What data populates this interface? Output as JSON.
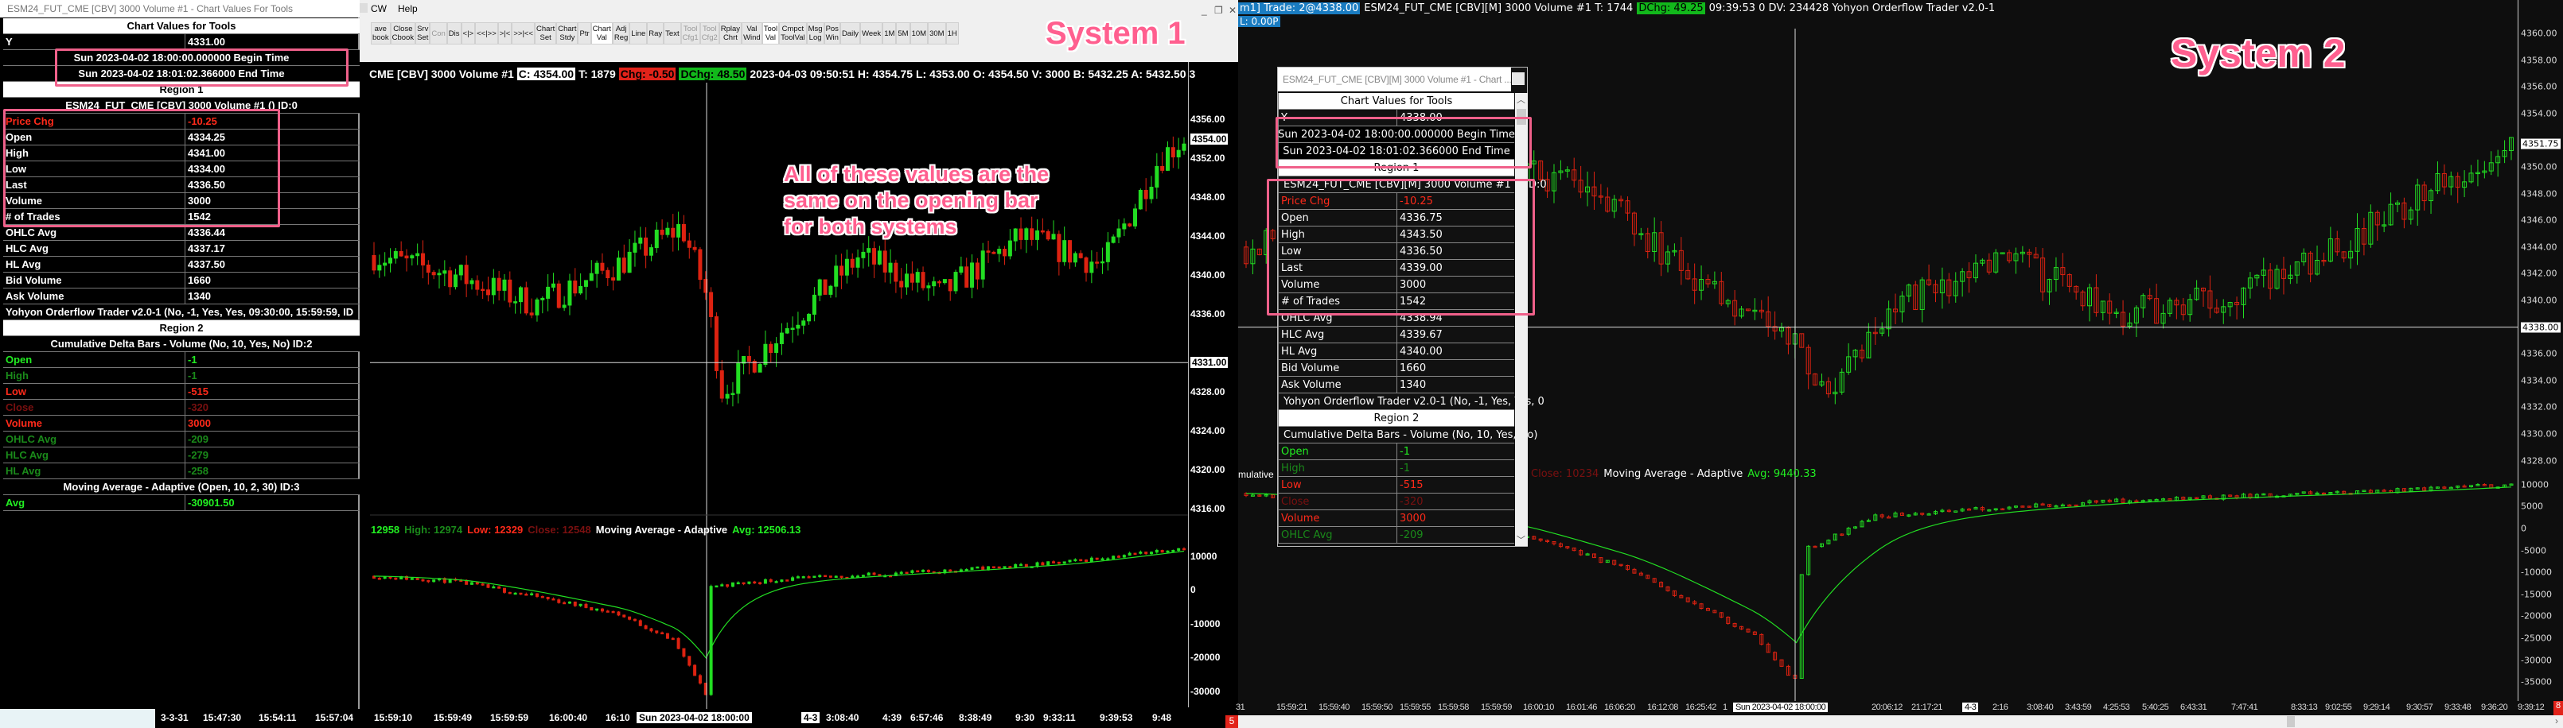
{
  "colors": {
    "up": "#22dd22",
    "down": "#dd2211",
    "price_chg": "#ff2a1a",
    "bright_green": "#22ee22",
    "dark_green": "#1a8a1a",
    "dark_red": "#7a1010",
    "annotation": "#ff5f8f",
    "trade_blue": "#1a7cc1"
  },
  "annotation_note": "All of these values are the\nsame on the opening bar\nfor both systems",
  "system1": {
    "label": "System 1",
    "panel": {
      "title": "ESM24_FUT_CME [CBV]  3000 Volume #1 - Chart Values For Tools",
      "rows": [
        {
          "type": "title",
          "text": "Chart Values for Tools"
        },
        {
          "type": "kv",
          "label": "Y",
          "value": "4331.00"
        },
        {
          "type": "full",
          "text": "Sun 2023-04-02  18:00:00.000000 Begin Time"
        },
        {
          "type": "full",
          "text": "Sun 2023-04-02  18:01:02.366000 End Time"
        },
        {
          "type": "title",
          "text": "Region 1"
        },
        {
          "type": "full",
          "text": "ESM24_FUT_CME [CBV]  3000 Volume #1 ()   ID:0"
        },
        {
          "type": "kv",
          "label": "Price Chg",
          "value": "-10.25",
          "color": "price_chg"
        },
        {
          "type": "kv",
          "label": "Open",
          "value": "4334.25"
        },
        {
          "type": "kv",
          "label": "High",
          "value": "4341.00"
        },
        {
          "type": "kv",
          "label": "Low",
          "value": "4334.00"
        },
        {
          "type": "kv",
          "label": "Last",
          "value": "4336.50"
        },
        {
          "type": "kv",
          "label": "Volume",
          "value": "3000"
        },
        {
          "type": "kv",
          "label": "# of Trades",
          "value": "1542"
        },
        {
          "type": "kv",
          "label": "OHLC Avg",
          "value": "4336.44"
        },
        {
          "type": "kv",
          "label": "HLC Avg",
          "value": "4337.17"
        },
        {
          "type": "kv",
          "label": "HL Avg",
          "value": "4337.50"
        },
        {
          "type": "kv",
          "label": "Bid Volume",
          "value": "1660"
        },
        {
          "type": "kv",
          "label": "Ask Volume",
          "value": "1340"
        },
        {
          "type": "fullleft",
          "text": "Yohyon Orderflow Trader v2.0-1 (No, -1, Yes, Yes, 09:30:00, 15:59:59, ID"
        },
        {
          "type": "title",
          "text": "Region 2"
        },
        {
          "type": "full",
          "text": "Cumulative Delta Bars - Volume (No, 10, Yes, No)   ID:2"
        },
        {
          "type": "kv",
          "label": "Open",
          "value": "-1",
          "color": "bright_green"
        },
        {
          "type": "kv",
          "label": "High",
          "value": "-1",
          "color": "dark_green"
        },
        {
          "type": "kv",
          "label": "Low",
          "value": "-515",
          "color": "price_chg"
        },
        {
          "type": "kv",
          "label": "Close",
          "value": "-320",
          "color": "dark_red"
        },
        {
          "type": "kv",
          "label": "Volume",
          "value": "3000",
          "color": "price_chg"
        },
        {
          "type": "kv",
          "label": "OHLC Avg",
          "value": "-209",
          "color": "dark_green"
        },
        {
          "type": "kv",
          "label": "HLC Avg",
          "value": "-279",
          "color": "dark_green"
        },
        {
          "type": "kv",
          "label": "HL Avg",
          "value": "-258",
          "color": "dark_green"
        },
        {
          "type": "full",
          "text": "Moving Average - Adaptive (Open, 10, 2, 30)   ID:3"
        },
        {
          "type": "kv",
          "label": "Avg",
          "value": "-30901.50",
          "color": "bright_green"
        }
      ]
    },
    "menu": [
      "CW",
      "Help"
    ],
    "toolbar": [
      {
        "label": "ave\nbook"
      },
      {
        "label": "Close\nCbook"
      },
      {
        "label": "Srv\nSet"
      },
      {
        "label": "Con",
        "disabled": true
      },
      {
        "label": "Dis"
      },
      {
        "label": "<|>"
      },
      {
        "label": "<<|>>"
      },
      {
        "label": ">|<"
      },
      {
        "label": ">>|<<"
      },
      {
        "label": "Chart\nSet"
      },
      {
        "label": "Chart\nStdy"
      },
      {
        "label": "Ptr"
      },
      {
        "label": "Chart\nVal",
        "active": true
      },
      {
        "label": "Adj\nReg"
      },
      {
        "label": "Line"
      },
      {
        "label": "Ray"
      },
      {
        "label": "Text"
      },
      {
        "label": "Tool\nCfg1",
        "disabled": true
      },
      {
        "label": "Tool\nCfg2",
        "disabled": true
      },
      {
        "label": "Rplay\nChrt"
      },
      {
        "label": "Val\nWind"
      },
      {
        "label": "Tool\nVal",
        "active": true
      },
      {
        "label": "Cmpct\nToolVal"
      },
      {
        "label": "Msg\nLog"
      },
      {
        "label": "Pos\nWin"
      },
      {
        "label": "Daily"
      },
      {
        "label": "Week"
      },
      {
        "label": "1M"
      },
      {
        "label": "5M"
      },
      {
        "label": "10M"
      },
      {
        "label": "30M"
      },
      {
        "label": "1H"
      }
    ],
    "header": {
      "symbol": "CME [CBV]  3000 Volume #1",
      "close": "C: 4354.00",
      "trades": "T: 1879",
      "chg": "Chg: -0.50",
      "dchg": "DChg: 48.50",
      "rest": "2023-04-03 09:50:51 H: 4354.75 L: 4353.00 O: 4354.50 V: 3000 B: 5432.25 A: 5432.50 3"
    },
    "price_axis": [
      "4356.00",
      "4352.00",
      "4348.00",
      "4344.00",
      "4340.00",
      "4336.00",
      "4328.00",
      "4324.00",
      "4320.00",
      "4316.00"
    ],
    "price_markers": {
      "last": "4354.00",
      "cursor": "4331.00"
    },
    "delta_axis": [
      "10000",
      "0",
      "-10000",
      "-20000",
      "-30000"
    ],
    "legend": [
      {
        "text": "12958",
        "color": "bright_green"
      },
      {
        "text": "High: 12974",
        "color": "dark_green"
      },
      {
        "text": "Low: 12329",
        "color": "price_chg"
      },
      {
        "text": "Close: 12548",
        "color": "dark_red"
      },
      {
        "text": "Moving Average - Adaptive",
        "color": "white"
      },
      {
        "text": "Avg: 12506.13",
        "color": "bright_green"
      }
    ],
    "time_axis": [
      "3-3-31",
      "15:47:30",
      "15:54:11",
      "15:57:04",
      "15:59:10",
      "15:59:49",
      "15:59:59",
      "16:00:40",
      "16:10",
      "Sun 2023-04-02  18:00:00",
      "4-3",
      "3:08:40",
      "4:39",
      "6:57:46",
      "8:38:49",
      "9:30",
      "9:33:11",
      "9:39:53",
      "9:48"
    ],
    "corner_badge": "5"
  },
  "system2": {
    "label": "System 2",
    "header": {
      "trade": "m1]  Trade: 2@4338.00",
      "symbol": "ESM24_FUT_CME [CBV][M]  3000 Volume #1 T: 1744",
      "dchg": "DChg: 49.25",
      "rest": "09:39:53 0 DV: 234428 Yohyon Orderflow Trader v2.0-1",
      "pl": "L: 0.00P"
    },
    "window": {
      "title": "ESM24_FUT_CME [CBV][M]  3000 Volume #1 - Chart ...",
      "rows": [
        {
          "type": "title",
          "text": "Chart Values for Tools"
        },
        {
          "type": "kv",
          "label": "Y",
          "value": "4338.00"
        },
        {
          "type": "full",
          "text": "Sun 2023-04-02  18:00:00.000000 Begin Time"
        },
        {
          "type": "full",
          "text": "Sun 2023-04-02  18:01:02.366000 End Time"
        },
        {
          "type": "title",
          "text": "Region 1"
        },
        {
          "type": "fullleft",
          "text": "ESM24_FUT_CME [CBV][M]  3000 Volume #1 ()   ID:0"
        },
        {
          "type": "kv",
          "label": "Price Chg",
          "value": "-10.25",
          "color": "price_chg"
        },
        {
          "type": "kv",
          "label": "Open",
          "value": "4336.75"
        },
        {
          "type": "kv",
          "label": "High",
          "value": "4343.50"
        },
        {
          "type": "kv",
          "label": "Low",
          "value": "4336.50"
        },
        {
          "type": "kv",
          "label": "Last",
          "value": "4339.00"
        },
        {
          "type": "kv",
          "label": "Volume",
          "value": "3000"
        },
        {
          "type": "kv",
          "label": "# of Trades",
          "value": "1542"
        },
        {
          "type": "kv",
          "label": "OHLC Avg",
          "value": "4338.94"
        },
        {
          "type": "kv",
          "label": "HLC Avg",
          "value": "4339.67"
        },
        {
          "type": "kv",
          "label": "HL Avg",
          "value": "4340.00"
        },
        {
          "type": "kv",
          "label": "Bid Volume",
          "value": "1660"
        },
        {
          "type": "kv",
          "label": "Ask Volume",
          "value": "1340"
        },
        {
          "type": "fullleft",
          "text": "Yohyon Orderflow Trader v2.0-1 (No, -1, Yes, Yes, 0"
        },
        {
          "type": "title",
          "text": "Region 2"
        },
        {
          "type": "fullleft",
          "text": "Cumulative Delta Bars - Volume (No, 10, Yes, No)"
        },
        {
          "type": "kv",
          "label": "Open",
          "value": "-1",
          "color": "bright_green"
        },
        {
          "type": "kv",
          "label": "High",
          "value": "-1",
          "color": "dark_green"
        },
        {
          "type": "kv",
          "label": "Low",
          "value": "-515",
          "color": "price_chg"
        },
        {
          "type": "kv",
          "label": "Close",
          "value": "-320",
          "color": "dark_red"
        },
        {
          "type": "kv",
          "label": "Volume",
          "value": "3000",
          "color": "price_chg"
        },
        {
          "type": "kv",
          "label": "OHLC Avg",
          "value": "-209",
          "color": "dark_green"
        }
      ]
    },
    "price_axis": [
      "4360.00",
      "4358.00",
      "4356.00",
      "4354.00",
      "4350.00",
      "4348.00",
      "4346.00",
      "4344.00",
      "4342.00",
      "4340.00",
      "4336.00",
      "4334.00",
      "4332.00",
      "4330.00",
      "4328.00"
    ],
    "price_markers": {
      "last": "4351.75",
      "cursor": "4338.00"
    },
    "delta_axis": [
      "10000",
      "5000",
      "0",
      "-5000",
      "-10000",
      "-15000",
      "-20000",
      "-25000",
      "-30000",
      "-35000"
    ],
    "legend_cut": "mulative",
    "legend": [
      {
        "text": "Close: 10234",
        "color": "dark_red"
      },
      {
        "text": "Moving Average - Adaptive",
        "color": "white"
      },
      {
        "text": "Avg: 9440.33",
        "color": "bright_green"
      }
    ],
    "time_axis": [
      "31",
      "15:59:21",
      "15:59:40",
      "15:59:50",
      "15:59:55",
      "15:59:58",
      "15:59:59",
      "16:00:10",
      "16:01:46",
      "16:06:20",
      "16:12:08",
      "16:25:42",
      "1",
      "Sun 2023-04-02  18:00:00",
      "20:06:12",
      "21:17:21",
      "4-3",
      "2:16",
      "3:08:40",
      "3:43:59",
      "4:25:53",
      "5:40:25",
      "6:43:31",
      "7:47:41",
      "8:33:13",
      "9:02:55",
      "9:29:14",
      "9:30:57",
      "9:33:48",
      "9:36:20",
      "9:39:12"
    ],
    "corner_badge": "8"
  }
}
